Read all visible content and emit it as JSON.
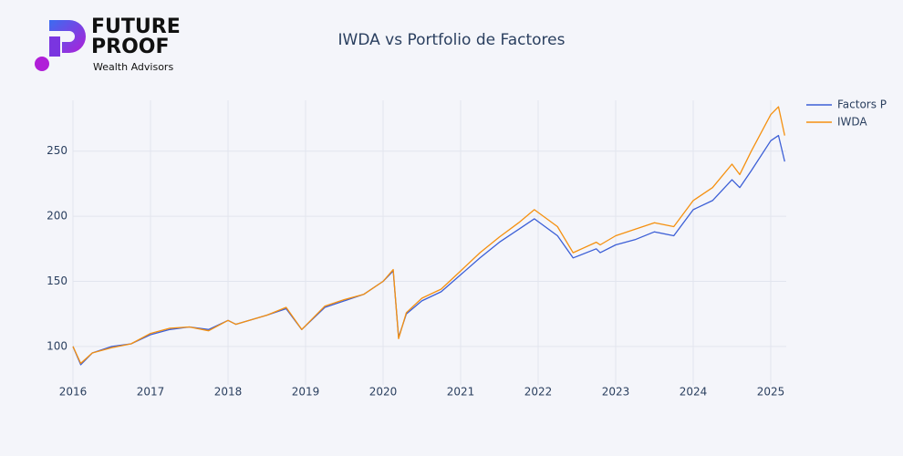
{
  "logo": {
    "line1": "FUTURE",
    "line2": "PROOF",
    "tagline": "Wealth Advisors"
  },
  "chart_data": {
    "type": "line",
    "title": "IWDA vs Portfolio de Factores",
    "x": [
      2016.0,
      2016.1,
      2016.25,
      2016.5,
      2016.75,
      2017.0,
      2017.25,
      2017.5,
      2017.75,
      2018.0,
      2018.1,
      2018.5,
      2018.75,
      2018.95,
      2019.25,
      2019.5,
      2019.75,
      2020.0,
      2020.13,
      2020.2,
      2020.3,
      2020.5,
      2020.75,
      2021.0,
      2021.25,
      2021.5,
      2021.75,
      2021.95,
      2022.25,
      2022.45,
      2022.75,
      2022.8,
      2023.0,
      2023.25,
      2023.5,
      2023.75,
      2024.0,
      2024.25,
      2024.5,
      2024.6,
      2024.75,
      2025.0,
      2025.1,
      2025.18
    ],
    "series": [
      {
        "name": "Factors P",
        "color": "#3c5fd6",
        "values": [
          100,
          86,
          95,
          100,
          102,
          109,
          113,
          115,
          113,
          120,
          117,
          124,
          129,
          113,
          130,
          135,
          140,
          150,
          158,
          107,
          125,
          135,
          142,
          155,
          168,
          180,
          190,
          198,
          185,
          168,
          175,
          172,
          178,
          182,
          188,
          185,
          205,
          212,
          228,
          222,
          235,
          258,
          262,
          242
        ]
      },
      {
        "name": "IWDA",
        "color": "#f5900f",
        "values": [
          100,
          87,
          95,
          99,
          102,
          110,
          114,
          115,
          112,
          120,
          117,
          124,
          130,
          113,
          131,
          136,
          140,
          150,
          159,
          106,
          126,
          137,
          144,
          158,
          172,
          184,
          195,
          205,
          192,
          172,
          180,
          178,
          185,
          190,
          195,
          192,
          212,
          222,
          240,
          232,
          250,
          278,
          284,
          262
        ]
      }
    ],
    "xlim": [
      2016,
      2025.2
    ],
    "xticks": [
      2016,
      2017,
      2018,
      2019,
      2020,
      2021,
      2022,
      2023,
      2024,
      2025
    ],
    "ylim": [
      70.5,
      289
    ],
    "yticks": [
      100,
      150,
      200,
      250
    ],
    "grid": true,
    "legend": "right"
  }
}
